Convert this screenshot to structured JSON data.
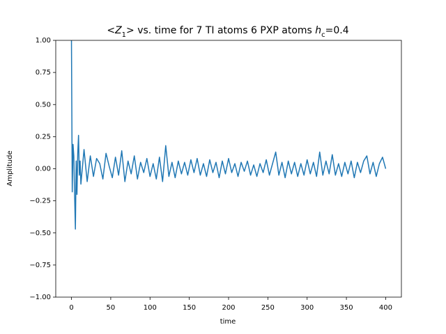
{
  "chart_data": {
    "type": "line",
    "title": [
      "<",
      "Z",
      "1",
      ">  vs. time for 7 TI atoms 6 PXP atoms ",
      "h",
      "c",
      "=0.4"
    ],
    "x_label": "time",
    "y_label": "Amplitude",
    "x": [
      0,
      1,
      2,
      3,
      4,
      5,
      6,
      7,
      8,
      9,
      10,
      11,
      12,
      16,
      20,
      24,
      28,
      32,
      36,
      40,
      44,
      48,
      52,
      56,
      60,
      64,
      68,
      72,
      76,
      80,
      84,
      88,
      92,
      96,
      100,
      104,
      108,
      112,
      116,
      120,
      124,
      128,
      132,
      136,
      140,
      144,
      148,
      152,
      156,
      160,
      164,
      168,
      172,
      176,
      180,
      184,
      188,
      192,
      196,
      200,
      204,
      208,
      212,
      216,
      220,
      224,
      228,
      232,
      236,
      240,
      244,
      248,
      252,
      256,
      260,
      264,
      268,
      272,
      276,
      280,
      284,
      288,
      292,
      296,
      300,
      304,
      308,
      312,
      316,
      320,
      324,
      328,
      332,
      336,
      340,
      344,
      348,
      352,
      356,
      360,
      364,
      368,
      372,
      376,
      380,
      384,
      388,
      392,
      396,
      400
    ],
    "series": [
      {
        "color": "#1f77b4",
        "values": [
          1.0,
          -0.18,
          0.19,
          0.1,
          -0.2,
          -0.47,
          0.06,
          -0.2,
          0.12,
          0.26,
          -0.05,
          0.06,
          -0.12,
          0.15,
          -0.1,
          0.1,
          -0.06,
          0.08,
          0.04,
          -0.08,
          0.12,
          0.02,
          -0.07,
          0.09,
          -0.05,
          0.14,
          -0.1,
          0.06,
          -0.04,
          0.1,
          -0.08,
          0.05,
          -0.03,
          0.08,
          -0.06,
          0.04,
          -0.08,
          0.09,
          -0.1,
          0.18,
          -0.06,
          0.05,
          -0.07,
          0.06,
          -0.04,
          0.05,
          -0.05,
          0.07,
          -0.03,
          0.08,
          -0.05,
          0.04,
          -0.06,
          0.07,
          -0.03,
          0.05,
          -0.07,
          0.06,
          -0.04,
          0.08,
          -0.03,
          0.04,
          -0.06,
          0.05,
          -0.02,
          0.06,
          -0.05,
          0.03,
          -0.06,
          0.04,
          -0.03,
          0.07,
          -0.05,
          0.04,
          0.13,
          -0.05,
          0.05,
          -0.07,
          0.06,
          -0.04,
          0.05,
          -0.06,
          0.04,
          -0.05,
          0.07,
          -0.04,
          0.05,
          -0.06,
          0.13,
          -0.05,
          0.06,
          -0.04,
          0.11,
          -0.05,
          0.04,
          -0.06,
          0.05,
          -0.04,
          0.06,
          -0.07,
          0.05,
          -0.03,
          0.06,
          0.1,
          -0.04,
          0.05,
          -0.06,
          0.04,
          0.09,
          0.0
        ]
      }
    ],
    "xlim": [
      -20,
      420
    ],
    "xticks": [
      0,
      50,
      100,
      150,
      200,
      250,
      300,
      350,
      400
    ],
    "ylim": [
      -1,
      1
    ],
    "yticks": [
      {
        "value": -1,
        "label": "−1.00"
      },
      {
        "value": -0.75,
        "label": "−0.75"
      },
      {
        "value": -0.5,
        "label": "−0.50"
      },
      {
        "value": -0.25,
        "label": "−0.25"
      },
      {
        "value": 0,
        "label": "0.00"
      },
      {
        "value": 0.25,
        "label": "0.25"
      },
      {
        "value": 0.5,
        "label": "0.50"
      },
      {
        "value": 0.75,
        "label": "0.75"
      },
      {
        "value": 1,
        "label": "1.00"
      }
    ]
  }
}
